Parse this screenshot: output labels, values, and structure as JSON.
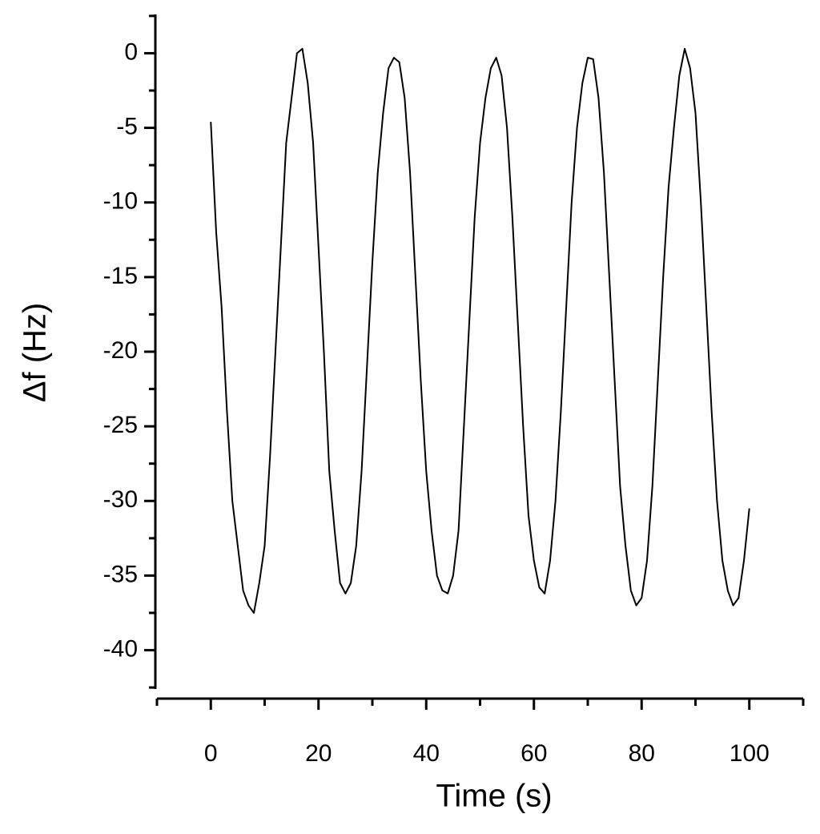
{
  "chart_data": {
    "type": "line",
    "x_label": "Time (s)",
    "y_label": "Δf (Hz)",
    "x": [
      0,
      1,
      2,
      3,
      4,
      5,
      6,
      7,
      8,
      9,
      10,
      11,
      12,
      13,
      14,
      15,
      16,
      17,
      18,
      19,
      20,
      21,
      22,
      23,
      24,
      25,
      26,
      27,
      28,
      29,
      30,
      31,
      32,
      33,
      34,
      35,
      36,
      37,
      38,
      39,
      40,
      41,
      42,
      43,
      44,
      45,
      46,
      47,
      48,
      49,
      50,
      51,
      52,
      53,
      54,
      55,
      56,
      57,
      58,
      59,
      60,
      61,
      62,
      63,
      64,
      65,
      66,
      67,
      68,
      69,
      70,
      71,
      72,
      73,
      74,
      75,
      76,
      77,
      78,
      79,
      80,
      81,
      82,
      83,
      84,
      85,
      86,
      87,
      88,
      89,
      90,
      91,
      92,
      93,
      94,
      95,
      96,
      97,
      98,
      99,
      100
    ],
    "series": [
      {
        "name": "Δf",
        "color": "#000000",
        "values": [
          -4.6,
          -12,
          -17,
          -24,
          -30,
          -33,
          -36,
          -37,
          -37.5,
          -35.5,
          -33,
          -27,
          -20,
          -13,
          -6,
          -3,
          0,
          0.3,
          -2,
          -6,
          -13,
          -20,
          -28,
          -32,
          -35.5,
          -36.2,
          -35.5,
          -33,
          -28,
          -21,
          -14,
          -8,
          -4,
          -1,
          -0.3,
          -0.6,
          -3,
          -8,
          -15,
          -22,
          -28,
          -32,
          -35,
          -36,
          -36.2,
          -35,
          -32,
          -25,
          -18,
          -11,
          -6,
          -3,
          -1,
          -0.3,
          -1.5,
          -5,
          -11,
          -18,
          -25,
          -31,
          -34,
          -35.8,
          -36.2,
          -34,
          -30,
          -24,
          -17,
          -10,
          -5,
          -2,
          -0.3,
          -0.4,
          -3,
          -8,
          -15,
          -22,
          -29,
          -33,
          -36,
          -37,
          -36.5,
          -34,
          -29,
          -22,
          -15,
          -9,
          -5,
          -1.5,
          0.3,
          -1,
          -4,
          -10,
          -17,
          -24,
          -30,
          -34,
          -36,
          -37,
          -36.5,
          -34,
          -30.5
        ]
      }
    ],
    "xlim": [
      -10,
      110
    ],
    "xticks": [
      0,
      20,
      40,
      60,
      80,
      100
    ],
    "ylim": [
      -42.6,
      2.6
    ],
    "yticks": [
      -40,
      -35,
      -30,
      -25,
      -20,
      -15,
      -10,
      -5,
      0
    ],
    "grid": false
  }
}
